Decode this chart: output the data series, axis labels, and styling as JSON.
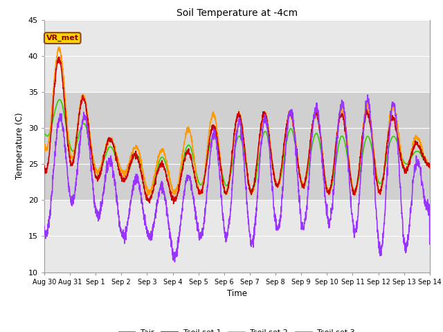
{
  "title": "Soil Temperature at -4cm",
  "xlabel": "Time",
  "ylabel": "Temperature (C)",
  "ylim": [
    10,
    45
  ],
  "yticks": [
    10,
    15,
    20,
    25,
    30,
    35,
    40,
    45
  ],
  "x_labels": [
    "Aug 30",
    "Aug 31",
    "Sep 1",
    "Sep 2",
    "Sep 3",
    "Sep 4",
    "Sep 5",
    "Sep 6",
    "Sep 7",
    "Sep 8",
    "Sep 9",
    "Sep 10",
    "Sep 11",
    "Sep 12",
    "Sep 13",
    "Sep 14"
  ],
  "annotation_text": "VR_met",
  "annotation_color": "#8B0000",
  "annotation_bg": "#FFD700",
  "colors": {
    "Tair": "#9933FF",
    "Tsoil set 1": "#CC0000",
    "Tsoil set 2": "#FF9900",
    "Tsoil set 3": "#33CC00"
  },
  "background_plot": "#E8E8E8",
  "background_fig": "#FFFFFF",
  "gray_band_color": "#D0D0D0",
  "gray_band_ylim": [
    20,
    35
  ]
}
